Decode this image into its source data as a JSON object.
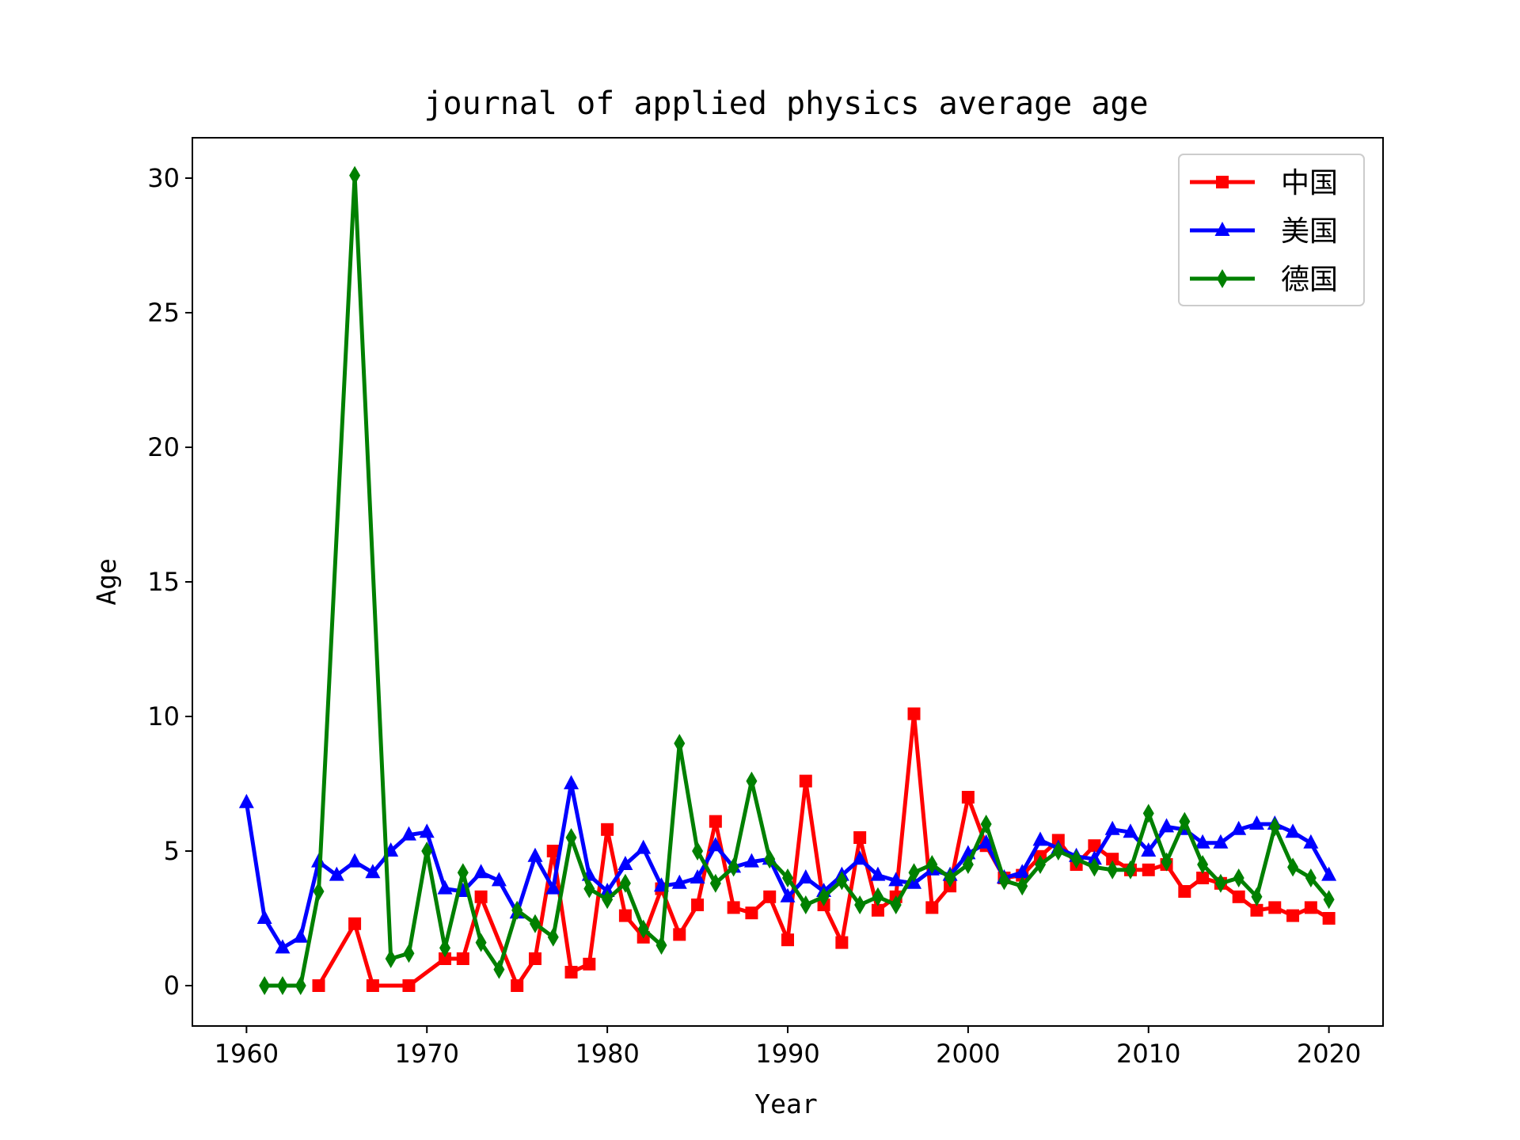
{
  "chart_data": {
    "type": "line",
    "title": "journal of applied physics average age",
    "xlabel": "Year",
    "ylabel": "Age",
    "xlim": [
      1957,
      2023
    ],
    "ylim": [
      -1.5,
      31.5
    ],
    "xticks": [
      1960,
      1970,
      1980,
      1990,
      2000,
      2010,
      2020
    ],
    "yticks": [
      0,
      5,
      10,
      15,
      20,
      25,
      30
    ],
    "grid": false,
    "legend_position": "top-right",
    "series": [
      {
        "name": "中国",
        "color": "#ff0000",
        "marker": "square",
        "x": [
          1964,
          1966,
          1967,
          1969,
          1971,
          1972,
          1973,
          1975,
          1976,
          1977,
          1978,
          1979,
          1980,
          1981,
          1982,
          1983,
          1984,
          1985,
          1986,
          1987,
          1988,
          1989,
          1990,
          1991,
          1992,
          1993,
          1994,
          1995,
          1996,
          1997,
          1998,
          1999,
          2000,
          2001,
          2002,
          2003,
          2004,
          2005,
          2006,
          2007,
          2008,
          2009,
          2010,
          2011,
          2012,
          2013,
          2014,
          2015,
          2016,
          2017,
          2018,
          2019,
          2020
        ],
        "y": [
          0,
          2.3,
          0,
          0,
          1,
          1,
          3.3,
          0,
          1,
          5,
          0.5,
          0.8,
          5.8,
          2.6,
          1.8,
          3.6,
          1.9,
          3,
          6.1,
          2.9,
          2.7,
          3.3,
          1.7,
          7.6,
          3,
          1.6,
          5.5,
          2.8,
          3.3,
          10.1,
          2.9,
          3.7,
          7,
          5.2,
          4,
          4.1,
          4.8,
          5.4,
          4.5,
          5.2,
          4.7,
          4.3,
          4.3,
          4.5,
          3.5,
          4,
          3.8,
          3.3,
          2.8,
          2.9,
          2.6,
          2.9,
          2.5
        ]
      },
      {
        "name": "美国",
        "color": "#0000ff",
        "marker": "triangle",
        "x": [
          1960,
          1961,
          1962,
          1963,
          1964,
          1965,
          1966,
          1967,
          1968,
          1969,
          1970,
          1971,
          1972,
          1973,
          1974,
          1975,
          1976,
          1977,
          1978,
          1979,
          1980,
          1981,
          1982,
          1983,
          1984,
          1985,
          1986,
          1987,
          1988,
          1989,
          1990,
          1991,
          1992,
          1993,
          1994,
          1995,
          1996,
          1997,
          1998,
          1999,
          2000,
          2001,
          2002,
          2003,
          2004,
          2005,
          2006,
          2007,
          2008,
          2009,
          2010,
          2011,
          2012,
          2013,
          2014,
          2015,
          2016,
          2017,
          2018,
          2019,
          2020
        ],
        "y": [
          6.8,
          2.5,
          1.4,
          1.8,
          4.6,
          4.1,
          4.6,
          4.2,
          5,
          5.6,
          5.7,
          3.6,
          3.5,
          4.2,
          3.9,
          2.7,
          4.8,
          3.6,
          7.5,
          4.1,
          3.5,
          4.5,
          5.1,
          3.7,
          3.8,
          4,
          5.2,
          4.4,
          4.6,
          4.7,
          3.3,
          4,
          3.5,
          4.1,
          4.7,
          4.1,
          3.9,
          3.8,
          4.3,
          4.1,
          4.9,
          5.3,
          4,
          4.2,
          5.4,
          5.1,
          4.8,
          4.7,
          5.8,
          5.7,
          5,
          5.9,
          5.8,
          5.3,
          5.3,
          5.8,
          6,
          6,
          5.7,
          5.3,
          4.1
        ]
      },
      {
        "name": "德国",
        "color": "#008000",
        "marker": "diamond",
        "x": [
          1961,
          1962,
          1963,
          1964,
          1966,
          1968,
          1969,
          1970,
          1971,
          1972,
          1973,
          1974,
          1975,
          1976,
          1977,
          1978,
          1979,
          1980,
          1981,
          1982,
          1983,
          1984,
          1985,
          1986,
          1987,
          1988,
          1989,
          1990,
          1991,
          1992,
          1993,
          1994,
          1995,
          1996,
          1997,
          1998,
          1999,
          2000,
          2001,
          2002,
          2003,
          2004,
          2005,
          2006,
          2007,
          2008,
          2009,
          2010,
          2011,
          2012,
          2013,
          2014,
          2015,
          2016,
          2017,
          2018,
          2019,
          2020
        ],
        "y": [
          0,
          0,
          0,
          3.5,
          30.1,
          1,
          1.2,
          5,
          1.4,
          4.2,
          1.6,
          0.6,
          2.8,
          2.3,
          1.8,
          5.5,
          3.6,
          3.2,
          3.8,
          2.1,
          1.5,
          9,
          5,
          3.8,
          4.4,
          7.6,
          4.7,
          4,
          3,
          3.3,
          3.9,
          3,
          3.3,
          3,
          4.2,
          4.5,
          4,
          4.5,
          6,
          3.9,
          3.7,
          4.5,
          5,
          4.7,
          4.4,
          4.3,
          4.3,
          6.4,
          4.6,
          6.1,
          4.5,
          3.8,
          4,
          3.3,
          5.9,
          4.4,
          4,
          3.2
        ]
      }
    ]
  }
}
